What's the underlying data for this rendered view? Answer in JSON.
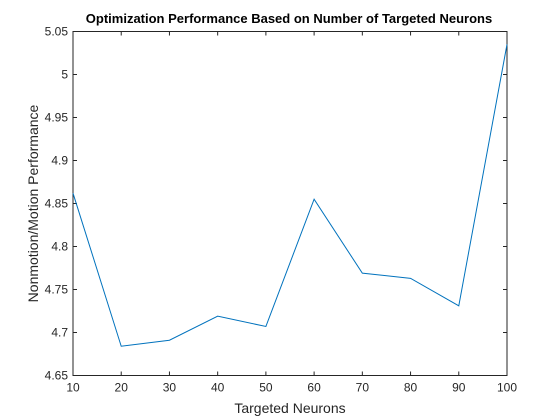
{
  "chart_data": {
    "type": "line",
    "title": "Optimization Performance Based on Number of Targeted Neurons",
    "xlabel": "Targeted Neurons",
    "ylabel": "Nonmotion/Motion Performance",
    "xlim": [
      10,
      100
    ],
    "ylim": [
      4.65,
      5.05
    ],
    "x_ticks": [
      "10",
      "20",
      "30",
      "40",
      "50",
      "60",
      "70",
      "80",
      "90",
      "100"
    ],
    "x_tick_values": [
      10,
      20,
      30,
      40,
      50,
      60,
      70,
      80,
      90,
      100
    ],
    "y_ticks": [
      "4.65",
      "4.7",
      "4.75",
      "4.8",
      "4.85",
      "4.9",
      "4.95",
      "5",
      "5.05"
    ],
    "y_tick_values": [
      4.65,
      4.7,
      4.75,
      4.8,
      4.85,
      4.9,
      4.95,
      5.0,
      5.05
    ],
    "grid": false,
    "color": "#0072bd",
    "series": [
      {
        "x": [
          10,
          20,
          30,
          40,
          50,
          60,
          70,
          80,
          90,
          100
        ],
        "values": [
          4.862,
          4.684,
          4.691,
          4.719,
          4.707,
          4.855,
          4.769,
          4.763,
          4.731,
          5.035
        ]
      }
    ]
  }
}
